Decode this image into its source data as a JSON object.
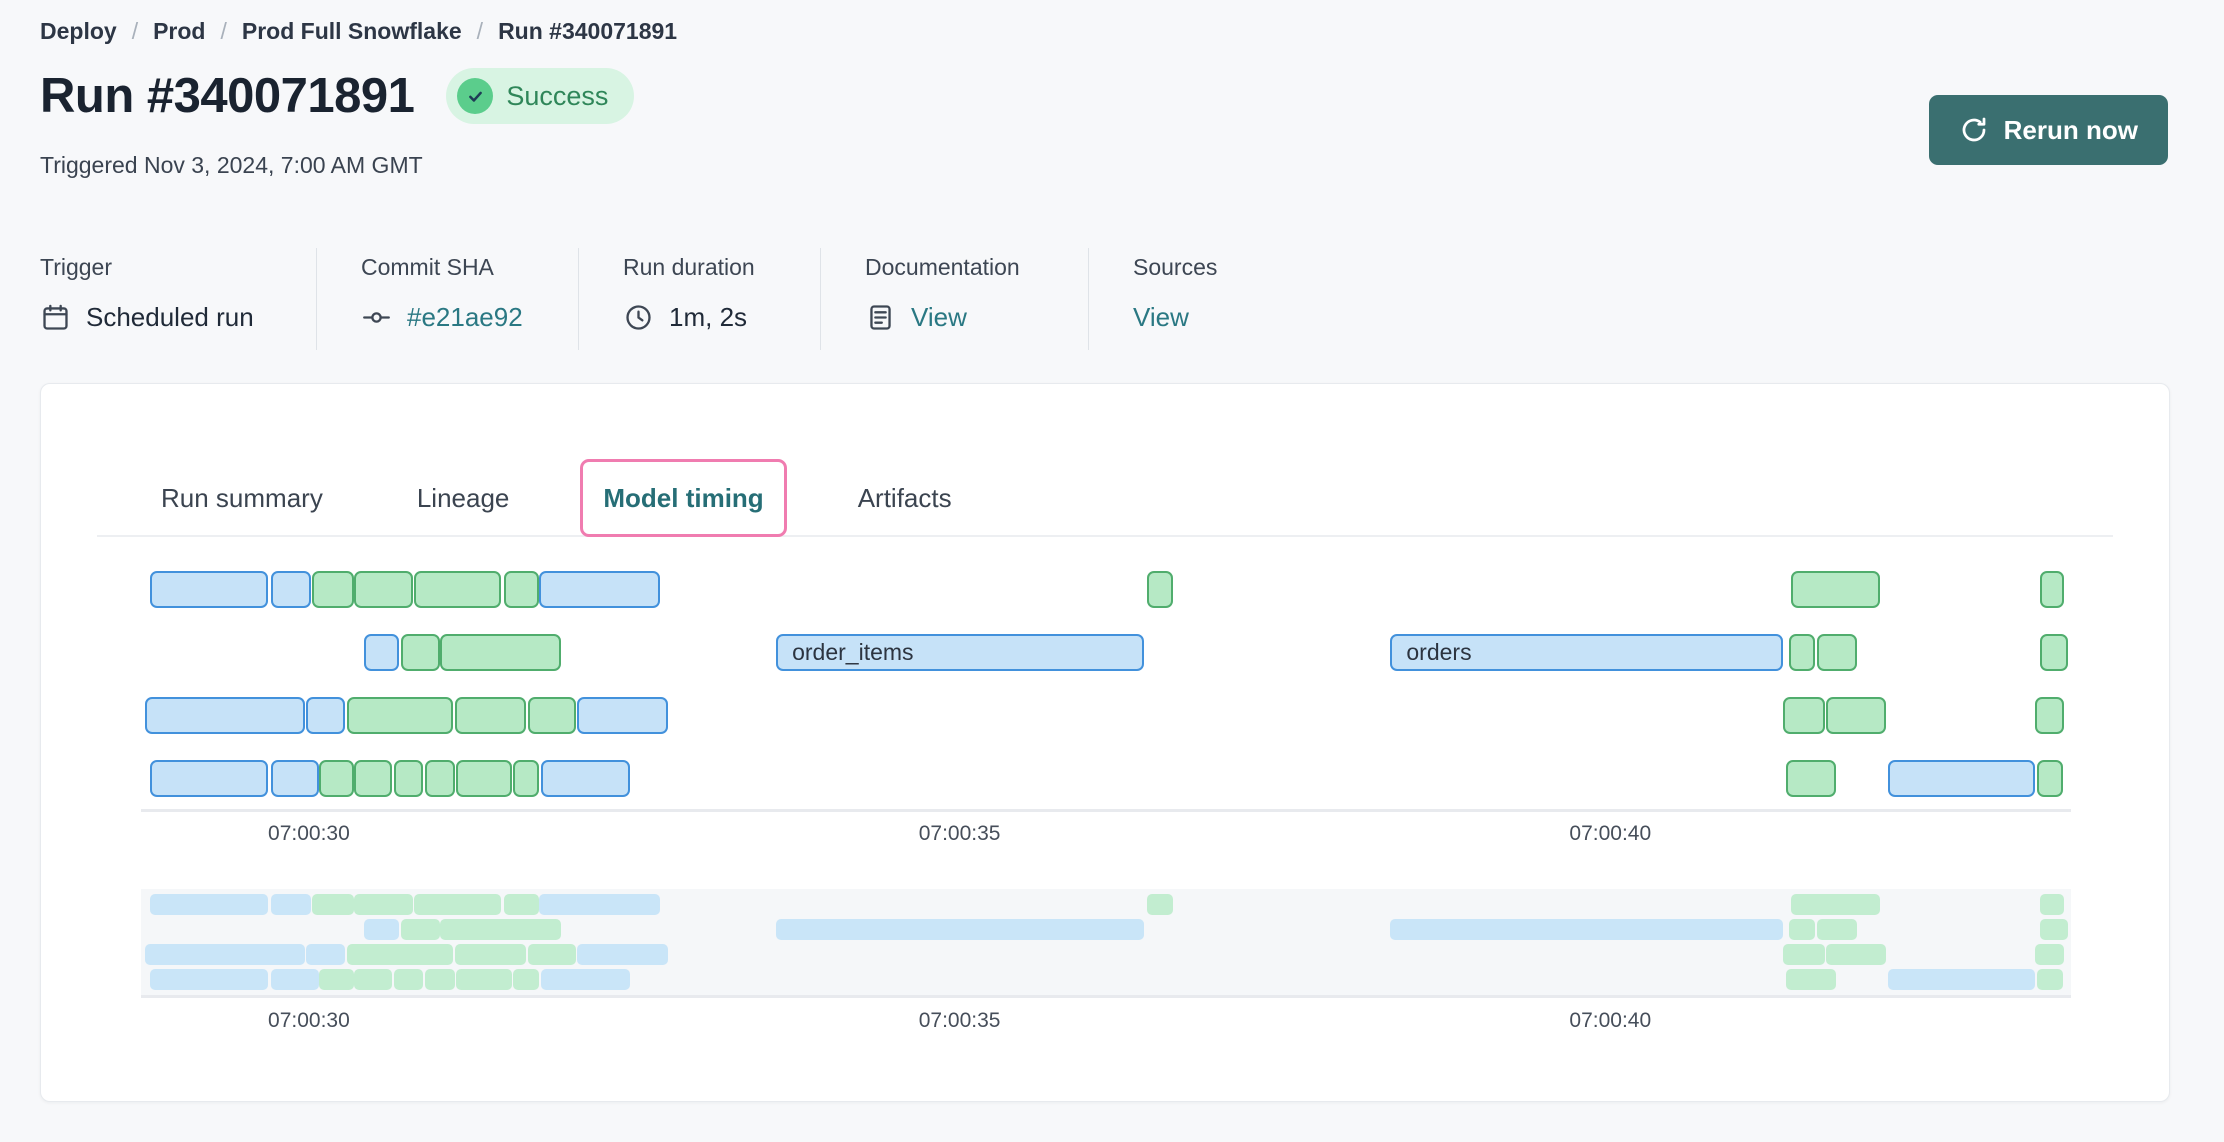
{
  "breadcrumb": {
    "separator": "/",
    "items": [
      "Deploy",
      "Prod",
      "Prod Full Snowflake",
      "Run #340071891"
    ]
  },
  "header": {
    "title": "Run #340071891",
    "status": {
      "label": "Success",
      "icon": "check-circle-icon"
    },
    "triggered": "Triggered Nov 3, 2024, 7:00 AM GMT",
    "rerun_button": {
      "label": "Rerun now",
      "icon": "refresh-icon"
    }
  },
  "meta": {
    "columns": [
      {
        "label": "Trigger",
        "value": "Scheduled run",
        "icon": "calendar-icon",
        "link": false
      },
      {
        "label": "Commit SHA",
        "value": "#e21ae92",
        "icon": "commit-icon",
        "link": true
      },
      {
        "label": "Run duration",
        "value": "1m, 2s",
        "icon": "clock-icon",
        "link": false
      },
      {
        "label": "Documentation",
        "value": "View",
        "icon": "document-icon",
        "link": true
      },
      {
        "label": "Sources",
        "value": "View",
        "icon": null,
        "link": true
      }
    ]
  },
  "tabs": [
    {
      "label": "Run summary",
      "active": false
    },
    {
      "label": "Lineage",
      "active": false
    },
    {
      "label": "Model timing",
      "active": true
    },
    {
      "label": "Artifacts",
      "active": false
    }
  ],
  "colors": {
    "page_background": "#f7f8fa",
    "bar_blue_fill": "#c6e2f8",
    "bar_blue_border": "#4291dc",
    "bar_green_fill": "#b6e9c5",
    "bar_green_border": "#50ad6d",
    "mini_blue": "#c9e5f8",
    "mini_green": "#c2edd0",
    "accent_teal": "#2a7883",
    "active_tab_ring": "#f07cb0",
    "success_green": "#2f8659",
    "rerun_button": "#3a6f70"
  },
  "chart_data": {
    "type": "gantt",
    "title": "Model timing",
    "time_axis": {
      "tick_labels": [
        "07:00:30",
        "07:00:35",
        "07:00:40"
      ],
      "tick_offsets_s": [
        0,
        5,
        10
      ],
      "domain_start_s": -1.29,
      "domain_end_s": 13.54,
      "reference_time": "07:00:30"
    },
    "lanes": [
      {
        "bars": [
          {
            "start_s": -1.22,
            "end_s": -0.31,
            "color": "blue"
          },
          {
            "start_s": -0.29,
            "end_s": 0.02,
            "color": "blue"
          },
          {
            "start_s": 0.02,
            "end_s": 0.35,
            "color": "green"
          },
          {
            "start_s": 0.35,
            "end_s": 0.8,
            "color": "green"
          },
          {
            "start_s": 0.81,
            "end_s": 1.48,
            "color": "green"
          },
          {
            "start_s": 1.5,
            "end_s": 1.77,
            "color": "green"
          },
          {
            "start_s": 1.77,
            "end_s": 2.7,
            "color": "blue"
          },
          {
            "start_s": 6.44,
            "end_s": 6.64,
            "color": "green"
          },
          {
            "start_s": 11.39,
            "end_s": 12.07,
            "color": "green"
          },
          {
            "start_s": 13.3,
            "end_s": 13.49,
            "color": "green"
          }
        ]
      },
      {
        "bars": [
          {
            "start_s": 0.42,
            "end_s": 0.69,
            "color": "blue"
          },
          {
            "start_s": 0.71,
            "end_s": 1.01,
            "color": "green"
          },
          {
            "start_s": 1.01,
            "end_s": 1.94,
            "color": "green"
          },
          {
            "start_s": 3.59,
            "end_s": 6.42,
            "color": "blue",
            "label": "order_items"
          },
          {
            "start_s": 8.31,
            "end_s": 11.33,
            "color": "blue",
            "label": "orders"
          },
          {
            "start_s": 11.37,
            "end_s": 11.57,
            "color": "green"
          },
          {
            "start_s": 11.59,
            "end_s": 11.9,
            "color": "green"
          },
          {
            "start_s": 13.3,
            "end_s": 13.52,
            "color": "green"
          }
        ]
      },
      {
        "bars": [
          {
            "start_s": -1.26,
            "end_s": -0.03,
            "color": "blue"
          },
          {
            "start_s": -0.02,
            "end_s": 0.28,
            "color": "blue"
          },
          {
            "start_s": 0.29,
            "end_s": 1.11,
            "color": "green"
          },
          {
            "start_s": 1.12,
            "end_s": 1.67,
            "color": "green"
          },
          {
            "start_s": 1.68,
            "end_s": 2.05,
            "color": "green"
          },
          {
            "start_s": 2.06,
            "end_s": 2.76,
            "color": "blue"
          },
          {
            "start_s": 11.33,
            "end_s": 11.65,
            "color": "green"
          },
          {
            "start_s": 11.66,
            "end_s": 12.12,
            "color": "green"
          },
          {
            "start_s": 13.26,
            "end_s": 13.49,
            "color": "green"
          }
        ]
      },
      {
        "bars": [
          {
            "start_s": -1.22,
            "end_s": -0.31,
            "color": "blue"
          },
          {
            "start_s": -0.29,
            "end_s": 0.08,
            "color": "blue"
          },
          {
            "start_s": 0.08,
            "end_s": 0.35,
            "color": "green"
          },
          {
            "start_s": 0.35,
            "end_s": 0.64,
            "color": "green"
          },
          {
            "start_s": 0.65,
            "end_s": 0.88,
            "color": "green"
          },
          {
            "start_s": 0.89,
            "end_s": 1.12,
            "color": "green"
          },
          {
            "start_s": 1.13,
            "end_s": 1.56,
            "color": "green"
          },
          {
            "start_s": 1.57,
            "end_s": 1.77,
            "color": "green"
          },
          {
            "start_s": 1.78,
            "end_s": 2.47,
            "color": "blue"
          },
          {
            "start_s": 11.35,
            "end_s": 11.73,
            "color": "green"
          },
          {
            "start_s": 12.13,
            "end_s": 13.26,
            "color": "blue"
          },
          {
            "start_s": 13.28,
            "end_s": 13.48,
            "color": "green"
          }
        ]
      }
    ]
  }
}
